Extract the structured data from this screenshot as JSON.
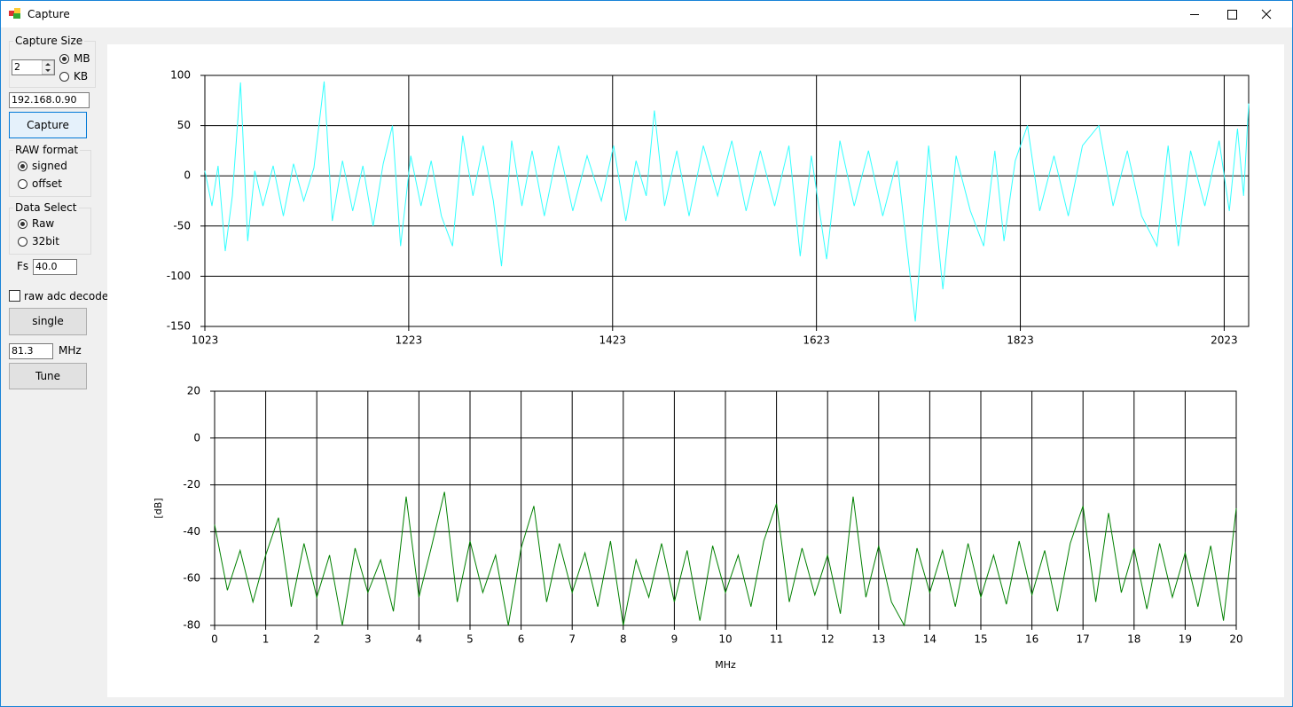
{
  "window": {
    "title": "Capture"
  },
  "controls": {
    "capture_size": {
      "label": "Capture Size",
      "value": "2",
      "options": [
        {
          "label": "MB",
          "checked": true
        },
        {
          "label": "KB",
          "checked": false
        }
      ]
    },
    "ip_address": "192.168.0.90",
    "capture_button": "Capture",
    "raw_format": {
      "label": "RAW format",
      "options": [
        {
          "label": "signed",
          "checked": true
        },
        {
          "label": "offset",
          "checked": false
        }
      ]
    },
    "data_select": {
      "label": "Data Select",
      "options": [
        {
          "label": "Raw",
          "checked": true
        },
        {
          "label": "32bit",
          "checked": false
        }
      ]
    },
    "fs": {
      "label": "Fs",
      "value": "40.0"
    },
    "raw_adc_decode": {
      "label": "raw adc decode",
      "checked": false
    },
    "single_button": "single",
    "tune": {
      "value": "81.3",
      "unit": "MHz"
    },
    "tune_button": "Tune"
  },
  "chart_data": [
    {
      "type": "line",
      "color": "#33ffff",
      "grid": true,
      "x": [
        1023,
        1030,
        1036,
        1043,
        1050,
        1058,
        1065,
        1072,
        1080,
        1090,
        1100,
        1110,
        1120,
        1130,
        1140,
        1148,
        1158,
        1168,
        1178,
        1188,
        1198,
        1207,
        1215,
        1225,
        1235,
        1245,
        1255,
        1266,
        1276,
        1286,
        1296,
        1306,
        1314,
        1324,
        1334,
        1344,
        1356,
        1370,
        1384,
        1398,
        1412,
        1424,
        1436,
        1446,
        1456,
        1464,
        1474,
        1486,
        1498,
        1512,
        1526,
        1540,
        1554,
        1568,
        1582,
        1596,
        1607,
        1618,
        1633,
        1646,
        1660,
        1674,
        1688,
        1702,
        1720,
        1733,
        1747,
        1760,
        1774,
        1787,
        1798,
        1807,
        1818,
        1830,
        1842,
        1856,
        1870,
        1884,
        1900,
        1914,
        1928,
        1942,
        1957,
        1968,
        1978,
        1990,
        2004,
        2018,
        2028,
        2036,
        2042,
        2047
      ],
      "values": [
        5,
        -30,
        10,
        -75,
        -20,
        93,
        -65,
        5,
        -30,
        10,
        -40,
        12,
        -25,
        8,
        94,
        -45,
        15,
        -35,
        10,
        -50,
        12,
        50,
        -70,
        20,
        -30,
        15,
        -40,
        -70,
        40,
        -20,
        30,
        -25,
        -90,
        35,
        -30,
        25,
        -40,
        30,
        -35,
        20,
        -25,
        30,
        -45,
        15,
        -20,
        65,
        -30,
        25,
        -40,
        30,
        -20,
        35,
        -35,
        25,
        -30,
        30,
        -80,
        20,
        -83,
        35,
        -30,
        25,
        -40,
        15,
        -145,
        30,
        -113,
        20,
        -35,
        -70,
        25,
        -65,
        15,
        50,
        -35,
        20,
        -40,
        30,
        50,
        -30,
        25,
        -40,
        -70,
        30,
        -70,
        25,
        -30,
        35,
        -35,
        47,
        -20,
        72
      ],
      "xlim": [
        1023,
        2047
      ],
      "xticks": [
        1023,
        1223,
        1423,
        1623,
        1823,
        2023
      ],
      "ylim": [
        -150,
        100
      ],
      "yticks": [
        -150,
        -100,
        -50,
        0,
        50,
        100
      ]
    },
    {
      "type": "line",
      "color": "#008000",
      "grid": true,
      "y_label": "[dB]",
      "x_label": "MHz",
      "x": [
        0,
        0.25,
        0.5,
        0.75,
        1,
        1.25,
        1.5,
        1.75,
        2,
        2.25,
        2.5,
        2.75,
        3,
        3.25,
        3.5,
        3.75,
        4,
        4.25,
        4.5,
        4.75,
        5,
        5.25,
        5.5,
        5.75,
        6,
        6.25,
        6.5,
        6.75,
        7,
        7.25,
        7.5,
        7.75,
        8,
        8.25,
        8.5,
        8.75,
        9,
        9.25,
        9.5,
        9.75,
        10,
        10.25,
        10.5,
        10.75,
        11,
        11.25,
        11.5,
        11.75,
        12,
        12.25,
        12.5,
        12.75,
        13,
        13.25,
        13.5,
        13.75,
        14,
        14.25,
        14.5,
        14.75,
        15,
        15.25,
        15.5,
        15.75,
        16,
        16.25,
        16.5,
        16.75,
        17,
        17.25,
        17.5,
        17.75,
        18,
        18.25,
        18.5,
        18.75,
        19,
        19.25,
        19.5,
        19.75,
        20
      ],
      "values": [
        -37,
        -65,
        -48,
        -70,
        -50,
        -34,
        -72,
        -45,
        -68,
        -50,
        -80,
        -47,
        -66,
        -52,
        -74,
        -25,
        -68,
        -46,
        -23,
        -70,
        -44,
        -66,
        -50,
        -80,
        -47,
        -29,
        -70,
        -45,
        -66,
        -49,
        -72,
        -44,
        -80,
        -52,
        -68,
        -45,
        -70,
        -48,
        -78,
        -46,
        -66,
        -50,
        -72,
        -44,
        -28,
        -70,
        -47,
        -67,
        -50,
        -75,
        -25,
        -68,
        -46,
        -70,
        -80,
        -47,
        -66,
        -48,
        -72,
        -45,
        -68,
        -50,
        -71,
        -44,
        -67,
        -48,
        -74,
        -45,
        -29,
        -70,
        -32,
        -66,
        -47,
        -73,
        -45,
        -68,
        -49,
        -72,
        -46,
        -78,
        -30
      ],
      "xlim": [
        0,
        20
      ],
      "xticks": [
        0,
        1,
        2,
        3,
        4,
        5,
        6,
        7,
        8,
        9,
        10,
        11,
        12,
        13,
        14,
        15,
        16,
        17,
        18,
        19,
        20
      ],
      "ylim": [
        -80,
        20
      ],
      "yticks": [
        -80,
        -60,
        -40,
        -20,
        0,
        20
      ]
    }
  ]
}
